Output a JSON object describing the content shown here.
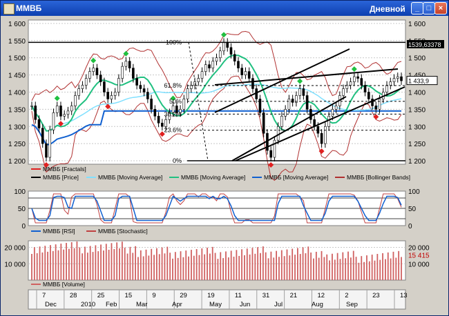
{
  "window": {
    "title": "ММВБ",
    "period": "Дневной",
    "buttons": {
      "minimize": "_",
      "maximize": "□",
      "close": "×"
    }
  },
  "chart_data": [
    {
      "type": "line",
      "panel": "price",
      "ylim": [
        1190,
        1610
      ],
      "yticks": [
        1200,
        1250,
        1300,
        1350,
        1400,
        1450,
        1500,
        1550,
        1600
      ],
      "right_price_markers": [
        "1539,63378",
        "1 433,9"
      ],
      "close": [
        1360,
        1320,
        1295,
        1250,
        1210,
        1290,
        1340,
        1360,
        1330,
        1335,
        1345,
        1360,
        1390,
        1410,
        1420,
        1440,
        1460,
        1470,
        1450,
        1430,
        1400,
        1380,
        1390,
        1400,
        1440,
        1475,
        1490,
        1470,
        1440,
        1420,
        1410,
        1400,
        1380,
        1350,
        1330,
        1310,
        1300,
        1320,
        1340,
        1360,
        1340,
        1350,
        1380,
        1410,
        1420,
        1430,
        1440,
        1460,
        1480,
        1470,
        1490,
        1500,
        1520,
        1545,
        1530,
        1510,
        1490,
        1470,
        1450,
        1460,
        1440,
        1410,
        1380,
        1340,
        1280,
        1230,
        1210,
        1260,
        1300,
        1330,
        1350,
        1380,
        1370,
        1390,
        1410,
        1390,
        1350,
        1320,
        1300,
        1280,
        1250,
        1300,
        1330,
        1350,
        1360,
        1390,
        1410,
        1420,
        1430,
        1445,
        1440,
        1420,
        1400,
        1380,
        1360,
        1350,
        1380,
        1400,
        1420,
        1430,
        1440,
        1445,
        1433
      ],
      "fib_levels": [
        {
          "label": "100%",
          "value": 1545
        },
        {
          "label": "61.8%",
          "value": 1419
        },
        {
          "label": "50%",
          "value": 1373
        },
        {
          "label": "38.2%",
          "value": 1336
        },
        {
          "label": "23.6%",
          "value": 1289
        },
        {
          "label": "0%",
          "value": 1200
        }
      ],
      "legend": [
        "ММВБ [Fractals]",
        "ММВБ [Price]",
        "ММВБ [Moving Average]",
        "ММВБ [Moving Average]",
        "ММВБ [Moving Average]",
        "ММВБ [Bollinger Bands]"
      ],
      "colors": {
        "fractal_up": "#20c040",
        "fractal_down": "#e02020",
        "price": "#000000",
        "ma_fast": "#20c080",
        "ma_mid": "#80e0ff",
        "ma_slow": "#1060d0",
        "bollinger": "#b03030"
      }
    },
    {
      "type": "line",
      "panel": "oscillators",
      "ylim": [
        0,
        100
      ],
      "yticks": [
        0,
        50,
        100
      ],
      "levels": [
        20,
        50,
        80
      ],
      "legend": [
        "ММВБ [RSI]",
        "ММВБ [Stochastic]"
      ],
      "colors": {
        "rsi": "#1060d0",
        "stochastic": "#c04040"
      }
    },
    {
      "type": "bar",
      "panel": "volume",
      "yticks": [
        "20 000",
        "10 000"
      ],
      "last_value": "15 415",
      "legend": [
        "ММВБ [Volume]"
      ],
      "colors": {
        "volume": "#d06060"
      }
    }
  ],
  "time_axis": {
    "days": [
      "7",
      "28",
      "25",
      "15",
      "9",
      "29",
      "19",
      "11",
      "31",
      "21",
      "12",
      "2",
      "23",
      "13"
    ],
    "months": [
      "Dec",
      "2010",
      "Feb",
      "Mar",
      "Apr",
      "May",
      "Jun",
      "Jul",
      "Aug",
      "Sep"
    ]
  }
}
